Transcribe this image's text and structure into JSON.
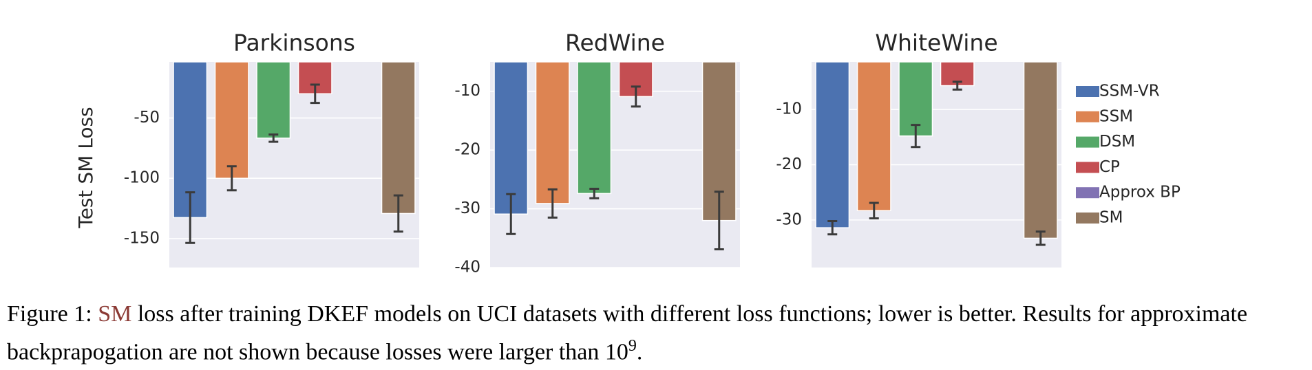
{
  "chart_data": [
    {
      "type": "bar",
      "title": "Parkinsons",
      "ylabel": "Test SM Loss",
      "values": [
        -132.6,
        -100,
        -66.7,
        -29.9,
        null,
        -129.2
      ],
      "errors": [
        21,
        10,
        3,
        7.6,
        null,
        15
      ],
      "ylim": [
        -174,
        -3.5
      ],
      "yticks": [
        -50,
        -100,
        -150
      ]
    },
    {
      "type": "bar",
      "title": "RedWine",
      "values": [
        -30.9,
        -29.1,
        -27.4,
        -10.9,
        null,
        -32
      ],
      "errors": [
        3.4,
        2.4,
        0.8,
        1.7,
        null,
        4.9
      ],
      "ylim": [
        -40,
        -5
      ],
      "yticks": [
        -10,
        -20,
        -30,
        -40
      ]
    },
    {
      "type": "bar",
      "title": "WhiteWine",
      "values": [
        -31.4,
        -28.3,
        -14.8,
        -5.7,
        null,
        -33.3
      ],
      "errors": [
        1.2,
        1.4,
        2,
        0.7,
        null,
        1.2
      ],
      "ylim": [
        -38.6,
        -1.4
      ],
      "yticks": [
        -10,
        -20,
        -30
      ]
    }
  ],
  "legend": {
    "names": [
      "SSM-VR",
      "SSM",
      "DSM",
      "CP",
      "Approx BP",
      "SM"
    ],
    "colors": [
      "#4c72b0",
      "#dd8452",
      "#55a868",
      "#c44e52",
      "#8172b3",
      "#937860"
    ]
  },
  "caption": {
    "label": "Figure 1:",
    "link": "SM",
    "text": "loss after training DKEF models on UCI datasets with different loss functions; lower is better. Results for approximate backprapogation are not shown because losses were larger than",
    "base": "10",
    "exp": "9",
    "end": "."
  }
}
